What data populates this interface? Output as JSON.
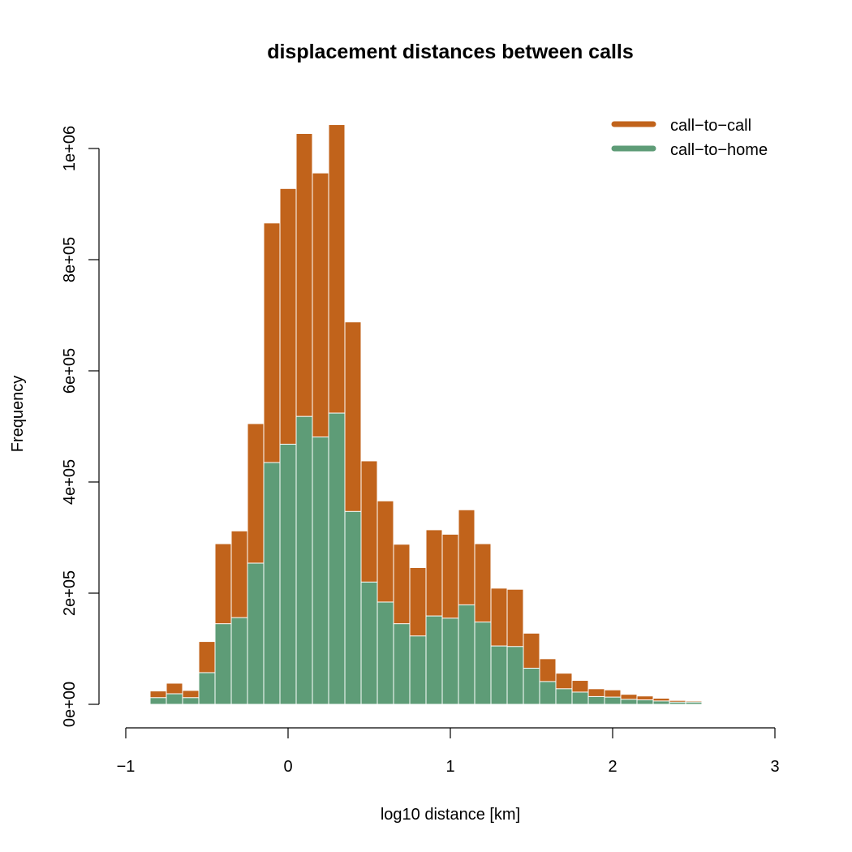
{
  "chart_data": {
    "type": "bar",
    "title": "displacement distances between calls",
    "xlabel": "log10 distance [km]",
    "ylabel": "Frequency",
    "xlim": [
      -1,
      3
    ],
    "ylim": [
      0,
      1000000
    ],
    "x_ticks": [
      -1,
      0,
      1,
      2,
      3
    ],
    "x_tick_labels": [
      "−1",
      "0",
      "1",
      "2",
      "3"
    ],
    "y_ticks": [
      0,
      200000,
      400000,
      600000,
      800000,
      1000000
    ],
    "y_tick_labels": [
      "0e+00",
      "2e+05",
      "4e+05",
      "6e+05",
      "8e+05",
      "1e+06"
    ],
    "bin_width": 0.1,
    "bin_starts": [
      -0.85,
      -0.75,
      -0.65,
      -0.55,
      -0.45,
      -0.35,
      -0.25,
      -0.15,
      -0.05,
      0.05,
      0.15,
      0.25,
      0.35,
      0.45,
      0.55,
      0.65,
      0.75,
      0.85,
      0.95,
      1.05,
      1.15,
      1.25,
      1.35,
      1.45,
      1.55,
      1.65,
      1.75,
      1.85,
      1.95,
      2.05,
      2.15,
      2.25,
      2.35,
      2.45,
      2.55,
      2.65
    ],
    "series": [
      {
        "name": "call−to−call",
        "color": "#c1631b",
        "values": [
          24000,
          38000,
          25000,
          113000,
          289000,
          312000,
          505000,
          866000,
          928000,
          1027000,
          956000,
          1043000,
          688000,
          438000,
          366000,
          288000,
          246000,
          314000,
          306000,
          350000,
          289000,
          209000,
          207000,
          128000,
          82000,
          56000,
          43000,
          28000,
          26000,
          18000,
          15000,
          11000,
          7000,
          6000,
          2000,
          1000
        ]
      },
      {
        "name": "call−to−home",
        "color": "#5e9c77",
        "values": [
          12000,
          19000,
          12000,
          57000,
          145000,
          156000,
          254000,
          435000,
          468000,
          518000,
          481000,
          524000,
          347000,
          220000,
          184000,
          145000,
          123000,
          159000,
          155000,
          179000,
          148000,
          105000,
          104000,
          65000,
          41000,
          28000,
          22000,
          14000,
          13000,
          9000,
          8000,
          6000,
          4000,
          4000,
          1000,
          500
        ]
      }
    ],
    "legend_position": "top-right",
    "grid": false
  },
  "colors": {
    "call_to_call": "#c1631b",
    "call_to_home": "#5e9c77",
    "bar_edge": "#ffffff"
  }
}
